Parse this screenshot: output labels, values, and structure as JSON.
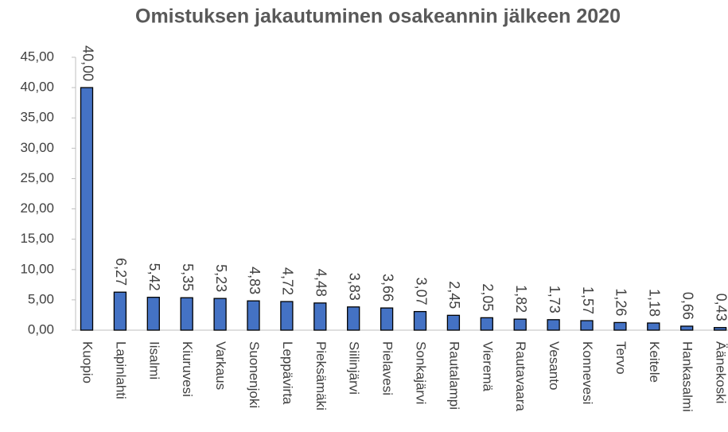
{
  "chart_data": {
    "type": "bar",
    "title": "Omistuksen jakautuminen osakeannin jälkeen 2020",
    "categories": [
      "Kuopio",
      "Lapinlahti",
      "Iisalmi",
      "Kiuruvesi",
      "Varkaus",
      "Suonenjoki",
      "Leppävirta",
      "Pieksämäki",
      "Siilinjärvi",
      "Pielavesi",
      "Sonkajärvi",
      "Rautalampi",
      "Vieremä",
      "Rautavaara",
      "Vesanto",
      "Konnevesi",
      "Tervo",
      "Keitele",
      "Hankasalmi",
      "Äänekoski"
    ],
    "values": [
      40.0,
      6.27,
      5.42,
      5.35,
      5.23,
      4.83,
      4.72,
      4.48,
      3.83,
      3.66,
      3.07,
      2.45,
      2.05,
      1.82,
      1.73,
      1.57,
      1.26,
      1.18,
      0.66,
      0.43
    ],
    "value_labels": [
      "40,00",
      "6,27",
      "5,42",
      "5,35",
      "5,23",
      "4,83",
      "4,72",
      "4,48",
      "3,83",
      "3,66",
      "3,07",
      "2,45",
      "2,05",
      "1,82",
      "1,73",
      "1,57",
      "1,26",
      "1,18",
      "0,66",
      "0,43"
    ],
    "color": "#4472c4",
    "ylim": [
      0,
      45
    ],
    "yticks": [
      {
        "value": 0,
        "label": "0,00"
      },
      {
        "value": 5,
        "label": "5,00"
      },
      {
        "value": 10,
        "label": "10,00"
      },
      {
        "value": 15,
        "label": "15,00"
      },
      {
        "value": 20,
        "label": "20,00"
      },
      {
        "value": 25,
        "label": "25,00"
      },
      {
        "value": 30,
        "label": "30,00"
      },
      {
        "value": 35,
        "label": "35,00"
      },
      {
        "value": 40,
        "label": "40,00"
      },
      {
        "value": 45,
        "label": "45,00"
      }
    ],
    "grid": false
  }
}
